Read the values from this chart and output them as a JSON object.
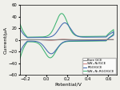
{
  "title": "",
  "xlabel": "Potential/V",
  "ylabel": "Current/μA",
  "xlim": [
    -0.25,
    0.68
  ],
  "ylim": [
    -60,
    60
  ],
  "xticks": [
    -0.2,
    0.0,
    0.2,
    0.4,
    0.6
  ],
  "yticks": [
    -60,
    -40,
    -20,
    0,
    20,
    40,
    60
  ],
  "legend": [
    "Bare GCE",
    "SiW₁₂Ni/GCE",
    "RGO/GCE",
    "SiW₁₂Ni-RGO/GCE"
  ],
  "colors": [
    "#808080",
    "#d08080",
    "#4169b0",
    "#3cb371"
  ],
  "background": "#f0f0eb",
  "figsize": [
    1.5,
    1.12
  ],
  "dpi": 100
}
